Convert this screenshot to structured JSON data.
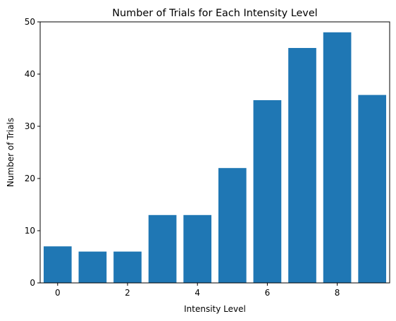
{
  "chart_data": {
    "type": "bar",
    "title": "Number of Trials for Each Intensity Level",
    "xlabel": "Intensity Level",
    "ylabel": "Number of Trials",
    "x": [
      0,
      1,
      2,
      3,
      4,
      5,
      6,
      7,
      8,
      9
    ],
    "values": [
      7,
      6,
      6,
      13,
      13,
      22,
      35,
      45,
      48,
      36
    ],
    "xlim": [
      -0.5,
      9.5
    ],
    "ylim": [
      0,
      50
    ],
    "xticks": [
      0,
      2,
      4,
      6,
      8
    ],
    "yticks": [
      0,
      10,
      20,
      30,
      40,
      50
    ],
    "xtick_labels": [
      "0",
      "2",
      "4",
      "6",
      "8"
    ],
    "ytick_labels": [
      "0",
      "10",
      "20",
      "30",
      "40",
      "50"
    ],
    "bar_color": "#1f77b4",
    "grid": false,
    "legend": "none"
  }
}
